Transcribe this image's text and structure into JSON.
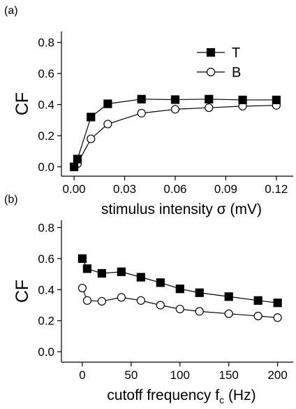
{
  "chart_data": [
    {
      "type": "line",
      "panel_label": "(a)",
      "ylabel": "CF",
      "xlabel": [
        "stimulus intensity σ (mV)"
      ],
      "xlim": [
        -0.0075,
        0.13
      ],
      "ylim": [
        -0.06,
        0.87
      ],
      "xticks": [
        {
          "value": 0,
          "label": "0.00"
        },
        0.03,
        0.06,
        0.09,
        0.12
      ],
      "yticks": [
        {
          "value": 0,
          "label": "0.0"
        },
        0.2,
        0.4,
        0.6,
        0.8
      ],
      "legend": true,
      "legend_position": "upper right",
      "series": [
        {
          "name": "T",
          "color": "#000000",
          "marker": "square",
          "filled": true,
          "x": [
            0,
            0.002,
            0.01,
            0.02,
            0.04,
            0.06,
            0.08,
            0.1,
            0.12
          ],
          "values": [
            0,
            0.05,
            0.32,
            0.405,
            0.435,
            0.432,
            0.435,
            0.43,
            0.43
          ]
        },
        {
          "name": "B",
          "color": "#000000",
          "marker": "circle",
          "filled": false,
          "x": [
            0,
            0.002,
            0.01,
            0.02,
            0.04,
            0.06,
            0.08,
            0.1,
            0.12
          ],
          "values": [
            0,
            0.02,
            0.18,
            0.275,
            0.345,
            0.37,
            0.38,
            0.39,
            0.395
          ]
        }
      ]
    },
    {
      "type": "line",
      "panel_label": "(b)",
      "ylabel": "CF",
      "xlabel": [
        "cutoff frequency f",
        "c",
        " (Hz)"
      ],
      "xlim": [
        -21.4,
        216
      ],
      "ylim": [
        -0.067,
        0.847
      ],
      "xticks": [
        0,
        50,
        100,
        150,
        200
      ],
      "yticks": [
        {
          "value": 0,
          "label": "0.0"
        },
        0.2,
        0.4,
        0.6,
        0.8
      ],
      "legend": false,
      "series": [
        {
          "color": "#000000",
          "marker": "square",
          "filled": true,
          "x": [
            0,
            5,
            20,
            40,
            60,
            80,
            100,
            120,
            150,
            180,
            200
          ],
          "values": [
            0.6,
            0.535,
            0.505,
            0.515,
            0.48,
            0.445,
            0.405,
            0.38,
            0.355,
            0.33,
            0.315
          ]
        },
        {
          "color": "#000000",
          "marker": "circle",
          "filled": false,
          "x": [
            0,
            5,
            20,
            40,
            60,
            80,
            100,
            120,
            150,
            180,
            200
          ],
          "values": [
            0.41,
            0.33,
            0.325,
            0.35,
            0.33,
            0.3,
            0.275,
            0.26,
            0.245,
            0.23,
            0.22
          ]
        }
      ]
    }
  ]
}
